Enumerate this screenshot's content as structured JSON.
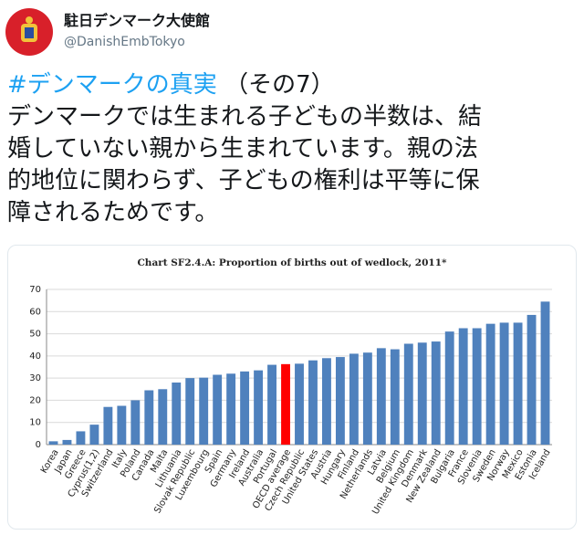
{
  "tweet": {
    "name": "駐日デンマーク大使館",
    "handle": "@DanishEmbTokyo",
    "hashtag": "#デンマークの真実",
    "hashtag_suffix": "（その7）",
    "body_lines": [
      "デンマークでは生まれる子どもの半数は、結",
      "婚していない親から生まれています。親の法",
      "的地位に関わらず、子どもの権利は平等に保",
      "障されるためです。"
    ]
  },
  "chart_data": {
    "type": "bar",
    "title": "Chart SF2.4.A: Proportion of births out of wedlock, 2011*",
    "categories": [
      "Korea",
      "Japan",
      "Greece",
      "Cyprus(1,2)",
      "Switzerland",
      "Italy",
      "Poland",
      "Canada",
      "Malta",
      "Lithuania",
      "Slovak Republic",
      "Luxembourg",
      "Spain",
      "Germany",
      "Ireland",
      "Australia",
      "Portugal",
      "OECD average",
      "Czech Republic",
      "United States",
      "Austria",
      "Hungary",
      "Finland",
      "Netherlands",
      "Latvia",
      "Belgium",
      "United Kingdom",
      "Denmark",
      "New Zealand",
      "Bulgaria",
      "France",
      "Slovenia",
      "Sweden",
      "Norway",
      "Mexico",
      "Estonia",
      "Iceland"
    ],
    "values": [
      1.5,
      2.1,
      6,
      9,
      17,
      17.5,
      20,
      24.5,
      25,
      28,
      30,
      30.2,
      31.5,
      32,
      33,
      33.5,
      36,
      36.3,
      36.5,
      38,
      39,
      39.5,
      41,
      41.5,
      43.5,
      43,
      45.5,
      46,
      46.5,
      51,
      52.5,
      52.5,
      54.5,
      55,
      55,
      58.5,
      64.5
    ],
    "color": "#4f81bd",
    "highlight": {
      "category": "OECD average",
      "color": "#ff0000"
    },
    "ylim": [
      0,
      70
    ],
    "yticks": [
      0,
      10,
      20,
      30,
      40,
      50,
      60,
      70
    ],
    "grid": true
  }
}
